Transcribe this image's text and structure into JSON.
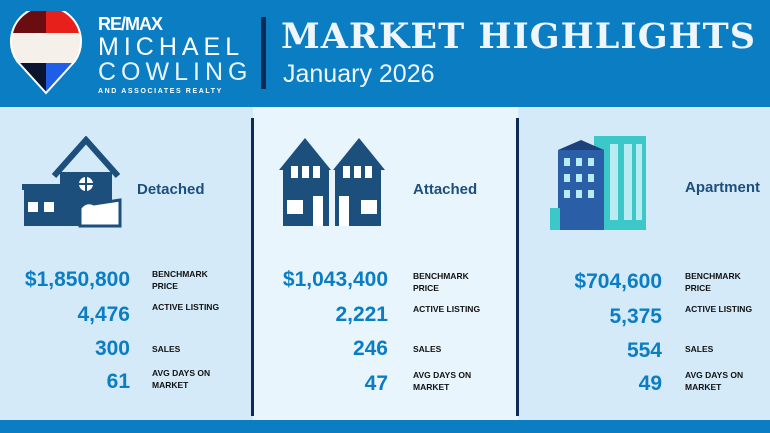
{
  "brand": {
    "remax": "RE/MAX",
    "line1": "MICHAEL",
    "line2": "COWLING",
    "line3": "AND ASSOCIATES REALTY"
  },
  "header": {
    "title": "MARKET HIGHLIGHTS",
    "subtitle": "January 2026"
  },
  "colors": {
    "header_blue": "#0b7dc3",
    "navy": "#0e2a55",
    "value_blue": "#0b7dc3"
  },
  "labels": {
    "benchmark": "BENCHMARK PRICE",
    "active": "ACTIVE LISTING",
    "sales": "SALES",
    "days": "AVG DAYS ON MARKET"
  },
  "panels": [
    {
      "type": "Detached",
      "icon": "house-icon",
      "benchmark": "$1,850,800",
      "active": "4,476",
      "sales": "300",
      "days": "61"
    },
    {
      "type": "Attached",
      "icon": "townhouse-icon",
      "benchmark": "$1,043,400",
      "active": "2,221",
      "sales": "246",
      "days": "47"
    },
    {
      "type": "Apartment",
      "icon": "apartment-building-icon",
      "benchmark": "$704,600",
      "active": "5,375",
      "sales": "554",
      "days": "49"
    }
  ]
}
